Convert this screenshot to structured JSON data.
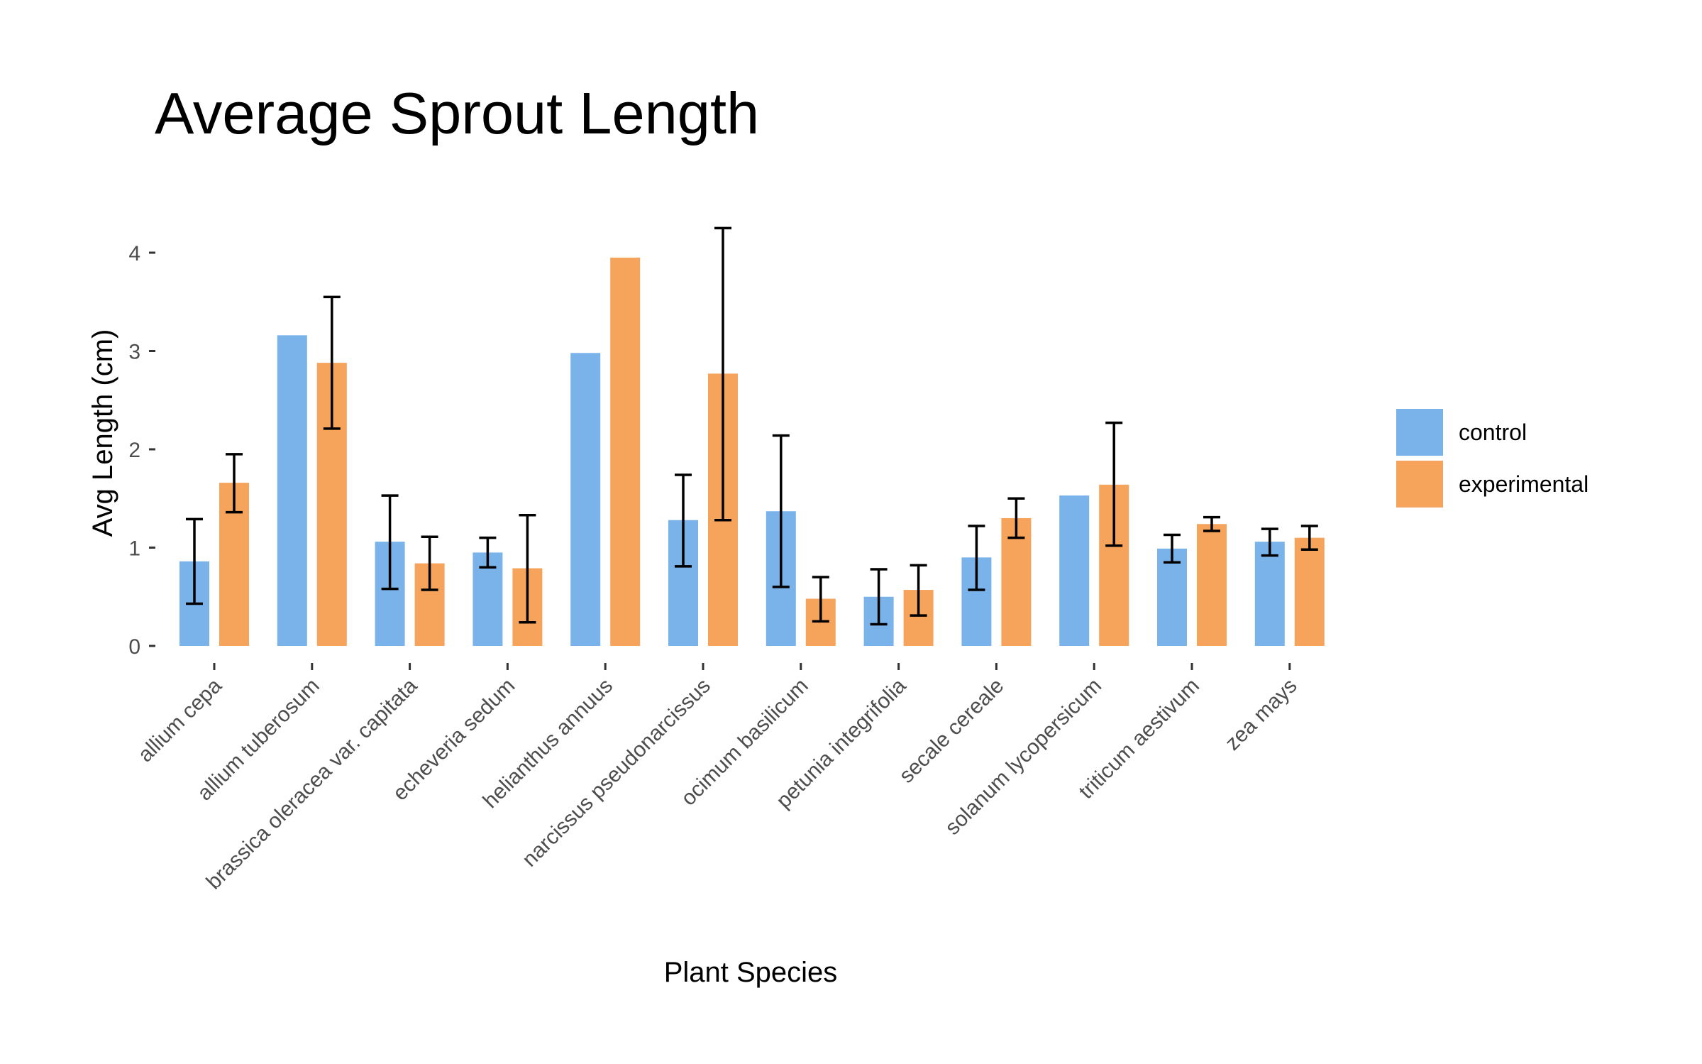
{
  "chart_data": {
    "type": "bar",
    "title": "Average Sprout Length",
    "xlabel": "Plant Species",
    "ylabel": "Avg Length (cm)",
    "ylim": [
      0,
      4.4
    ],
    "yticks": [
      0,
      1,
      2,
      3,
      4
    ],
    "grid": false,
    "legend_position": "right",
    "error_bars": true,
    "categories": [
      "allium cepa",
      "allium tuberosum",
      "brassica oleracea var. capitata",
      "echeveria sedum",
      "helianthus annuus",
      "narcissus pseudonarcissus",
      "ocimum basilicum",
      "petunia integrifolia",
      "secale cereale",
      "solanum lycopersicum",
      "triticum aestivum",
      "zea mays"
    ],
    "series": [
      {
        "name": "control",
        "color": "#7ab3ea",
        "values": [
          0.86,
          3.16,
          1.06,
          0.95,
          2.98,
          1.28,
          1.37,
          0.5,
          0.9,
          1.53,
          0.99,
          1.06
        ],
        "error_low": [
          0.43,
          null,
          0.58,
          0.8,
          null,
          0.81,
          0.6,
          0.22,
          0.57,
          null,
          0.85,
          0.92
        ],
        "error_high": [
          1.29,
          null,
          1.53,
          1.1,
          null,
          1.74,
          2.14,
          0.78,
          1.22,
          null,
          1.13,
          1.19
        ]
      },
      {
        "name": "experimental",
        "color": "#f6a45c",
        "values": [
          1.66,
          2.88,
          0.84,
          0.79,
          3.95,
          2.77,
          0.48,
          0.57,
          1.3,
          1.64,
          1.24,
          1.1
        ],
        "error_low": [
          1.36,
          2.21,
          0.57,
          0.24,
          null,
          1.28,
          0.25,
          0.31,
          1.1,
          1.02,
          1.17,
          0.98
        ],
        "error_high": [
          1.95,
          3.55,
          1.11,
          1.33,
          null,
          4.25,
          0.7,
          0.82,
          1.5,
          2.27,
          1.31,
          1.22
        ]
      }
    ]
  }
}
